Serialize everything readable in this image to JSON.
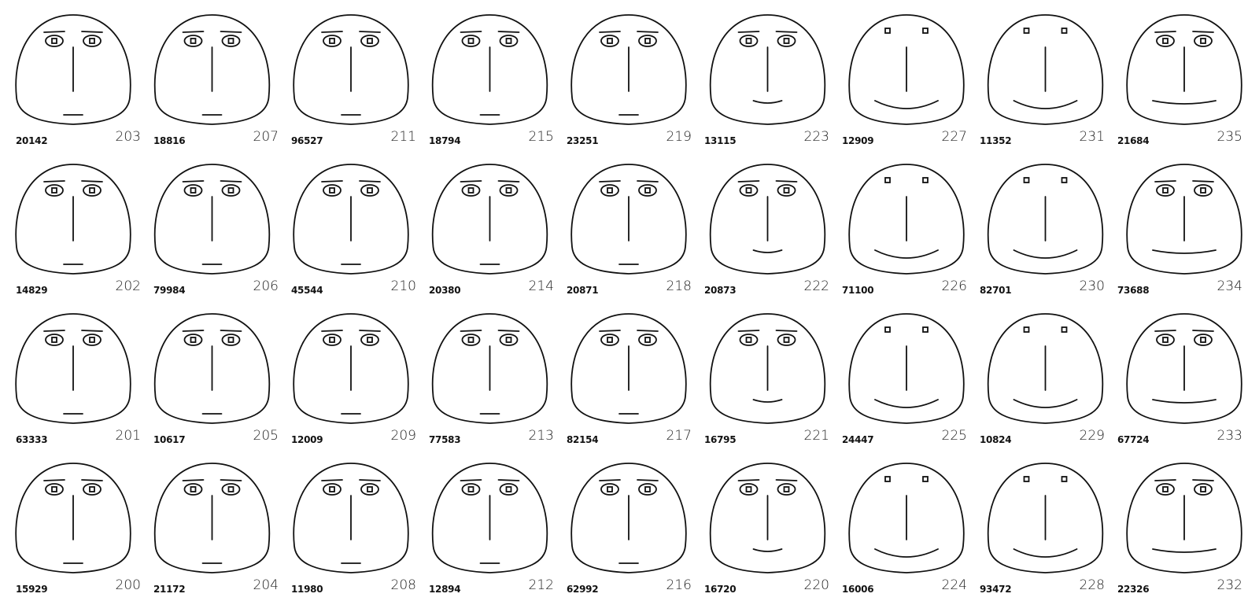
{
  "columns": [
    [
      {
        "id": "20142",
        "num": "203"
      },
      {
        "id": "14829",
        "num": "202"
      },
      {
        "id": "63333",
        "num": "201"
      },
      {
        "id": "15929",
        "num": "200"
      }
    ],
    [
      {
        "id": "18816",
        "num": "207"
      },
      {
        "id": "79984",
        "num": "206"
      },
      {
        "id": "10617",
        "num": "205"
      },
      {
        "id": "21172",
        "num": "204"
      }
    ],
    [
      {
        "id": "96527",
        "num": "211"
      },
      {
        "id": "45544",
        "num": "210"
      },
      {
        "id": "12009",
        "num": "209"
      },
      {
        "id": "11980",
        "num": "208"
      }
    ],
    [
      {
        "id": "18794",
        "num": "215"
      },
      {
        "id": "20380",
        "num": "214"
      },
      {
        "id": "77583",
        "num": "213"
      },
      {
        "id": "12894",
        "num": "212"
      }
    ],
    [
      {
        "id": "23251",
        "num": "219"
      },
      {
        "id": "20871",
        "num": "218"
      },
      {
        "id": "82154",
        "num": "217"
      },
      {
        "id": "62992",
        "num": "216"
      }
    ],
    [
      {
        "id": "13115",
        "num": "223"
      },
      {
        "id": "20873",
        "num": "222"
      },
      {
        "id": "16795",
        "num": "221"
      },
      {
        "id": "16720",
        "num": "220"
      }
    ],
    [
      {
        "id": "12909",
        "num": "227"
      },
      {
        "id": "71100",
        "num": "226"
      },
      {
        "id": "24447",
        "num": "225"
      },
      {
        "id": "16006",
        "num": "224"
      }
    ],
    [
      {
        "id": "11352",
        "num": "231"
      },
      {
        "id": "82701",
        "num": "230"
      },
      {
        "id": "10824",
        "num": "229"
      },
      {
        "id": "93472",
        "num": "228"
      }
    ],
    [
      {
        "id": "21684",
        "num": "235"
      },
      {
        "id": "73688",
        "num": "234"
      },
      {
        "id": "67724",
        "num": "233"
      },
      {
        "id": "22326",
        "num": "232"
      }
    ]
  ]
}
